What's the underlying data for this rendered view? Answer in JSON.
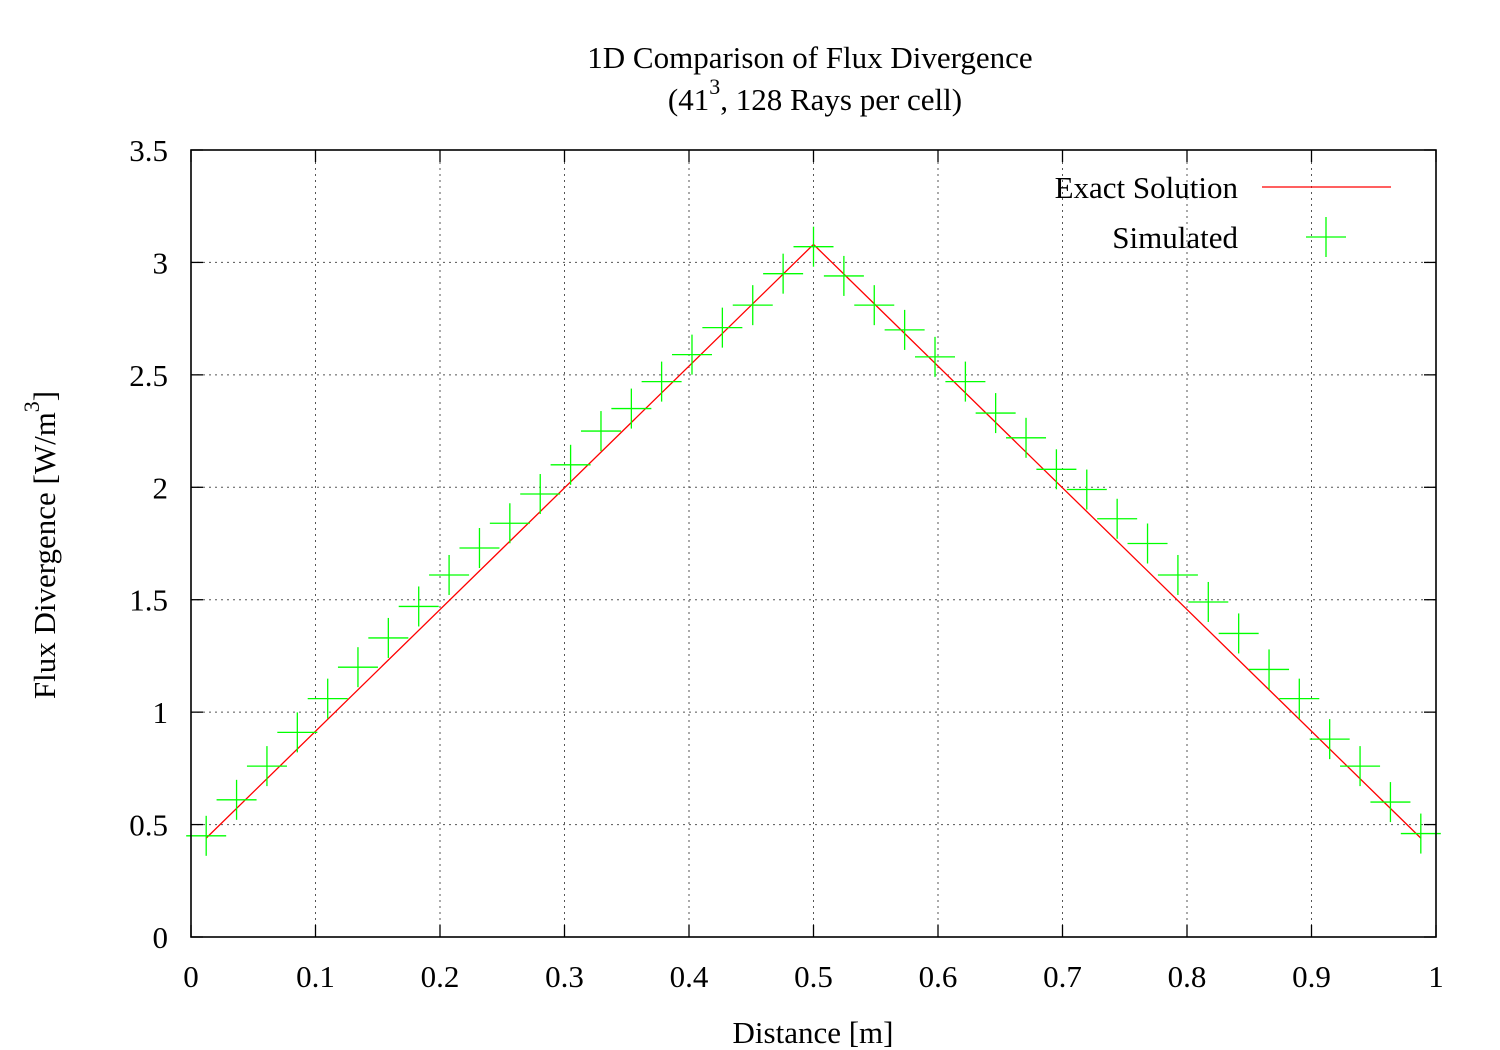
{
  "chart_data": {
    "type": "line",
    "title": "1D Comparison of Flux Divergence",
    "subtitle_parts": [
      "(41",
      "3",
      ", 128 Rays per cell)"
    ],
    "xlabel": "Distance [m]",
    "ylabel_parts": [
      "Flux Divergence [W/m",
      "3",
      "]"
    ],
    "xlim": [
      0,
      1
    ],
    "ylim": [
      0,
      3.5
    ],
    "x_ticks": [
      "0",
      "0.1",
      "0.2",
      "0.3",
      "0.4",
      "0.5",
      "0.6",
      "0.7",
      "0.8",
      "0.9",
      "1"
    ],
    "y_ticks": [
      "0",
      "0.5",
      "1",
      "1.5",
      "2",
      "2.5",
      "3",
      "3.5"
    ],
    "grid": true,
    "legend_position": "top-right",
    "series": [
      {
        "name": "Exact Solution",
        "style": "line",
        "color": "#ff0000",
        "x": [
          0.0122,
          0.5,
          0.9878
        ],
        "y": [
          0.44,
          3.08,
          0.44
        ]
      },
      {
        "name": "Simulated",
        "style": "plus",
        "color": "#00ff00",
        "x": [
          0.0122,
          0.0366,
          0.061,
          0.0854,
          0.1098,
          0.1341,
          0.1585,
          0.1829,
          0.2073,
          0.2317,
          0.2561,
          0.2805,
          0.3049,
          0.3293,
          0.3537,
          0.378,
          0.4024,
          0.4268,
          0.4512,
          0.4756,
          0.5,
          0.5244,
          0.5488,
          0.5732,
          0.5976,
          0.622,
          0.6463,
          0.6707,
          0.6951,
          0.7195,
          0.7439,
          0.7683,
          0.7927,
          0.8171,
          0.8415,
          0.8659,
          0.8902,
          0.9146,
          0.939,
          0.9634,
          0.9878
        ],
        "y": [
          0.45,
          0.61,
          0.76,
          0.91,
          1.06,
          1.2,
          1.33,
          1.47,
          1.61,
          1.73,
          1.84,
          1.97,
          2.1,
          2.25,
          2.35,
          2.47,
          2.59,
          2.71,
          2.81,
          2.95,
          3.07,
          2.94,
          2.81,
          2.7,
          2.58,
          2.47,
          2.33,
          2.22,
          2.08,
          1.99,
          1.86,
          1.75,
          1.61,
          1.49,
          1.35,
          1.19,
          1.06,
          0.88,
          0.76,
          0.6,
          0.46
        ]
      }
    ]
  }
}
